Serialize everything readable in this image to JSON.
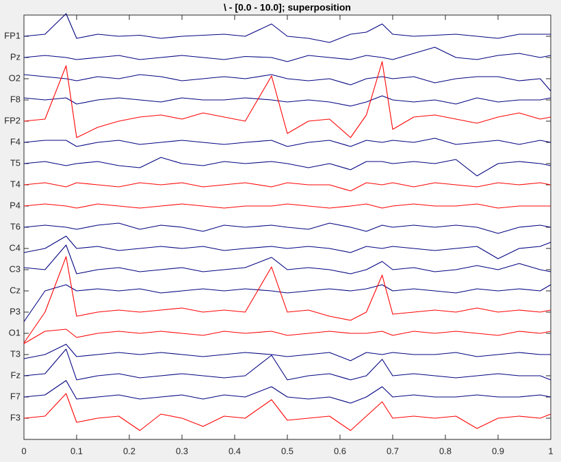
{
  "chart_data": {
    "type": "line",
    "title": "\\ - [0.0 - 10.0]; superposition",
    "x": [
      0,
      0.04,
      0.08,
      0.1,
      0.14,
      0.18,
      0.22,
      0.26,
      0.3,
      0.34,
      0.38,
      0.42,
      0.47,
      0.5,
      0.54,
      0.58,
      0.62,
      0.65,
      0.68,
      0.7,
      0.74,
      0.78,
      0.82,
      0.86,
      0.9,
      0.94,
      0.98,
      1
    ],
    "xlim": [
      0,
      1
    ],
    "xticks": [
      0,
      0.1,
      0.2,
      0.3,
      0.4,
      0.5,
      0.6,
      0.7,
      0.8,
      0.9,
      1
    ],
    "series": [
      {
        "name": "FP1",
        "color": "#000080",
        "values": [
          0,
          0.1,
          1.1,
          -0.1,
          0.1,
          0,
          0.05,
          -0.1,
          0,
          0.05,
          0.1,
          0,
          0.6,
          0,
          -0.1,
          -0.3,
          0.1,
          0.2,
          0.6,
          0.1,
          0,
          0.05,
          0.1,
          0,
          -0.1,
          0.1,
          0.1,
          0.1
        ]
      },
      {
        "name": "Pz",
        "color": "#000080",
        "values": [
          0,
          0.1,
          0,
          -0.1,
          0,
          0.1,
          -0.1,
          0,
          0.1,
          0,
          -0.1,
          0.05,
          0,
          -0.2,
          0.1,
          0,
          -0.1,
          0.1,
          0,
          -0.1,
          0.2,
          0.5,
          0,
          -0.1,
          0.1,
          0.2,
          0,
          0.1
        ]
      },
      {
        "name": "O2",
        "color": "#000080",
        "values": [
          0.2,
          0.1,
          0,
          -0.1,
          0.1,
          0,
          0.2,
          0.1,
          -0.1,
          0,
          0.1,
          0,
          0.2,
          0,
          -0.1,
          0,
          -0.3,
          0,
          0.1,
          0,
          0.1,
          -0.2,
          0,
          0.1,
          0.1,
          -0.1,
          0,
          -0.6
        ]
      },
      {
        "name": "F8",
        "color": "#000080",
        "values": [
          0.1,
          0,
          0.1,
          -0.2,
          0,
          0.1,
          0,
          -0.1,
          0.1,
          0,
          0,
          0.1,
          0,
          -0.1,
          0,
          -0.1,
          -0.3,
          -0.1,
          0.2,
          0,
          -0.1,
          0,
          -0.2,
          0.1,
          -0.1,
          0,
          0,
          0.1
        ]
      },
      {
        "name": "FP2",
        "color": "#ff0000",
        "values": [
          0,
          0.1,
          2.7,
          -0.8,
          -0.3,
          0,
          0.2,
          0.3,
          0.1,
          0.4,
          0.2,
          0,
          2.2,
          -0.6,
          0,
          0.1,
          -0.8,
          0.3,
          2.9,
          -0.4,
          0.2,
          0.3,
          0.1,
          -0.1,
          0.2,
          0.4,
          0.1,
          0.2
        ]
      },
      {
        "name": "F4",
        "color": "#000080",
        "values": [
          0,
          0.1,
          0.1,
          -0.2,
          0,
          0.1,
          -0.1,
          0,
          0.1,
          0,
          -0.1,
          0,
          0.1,
          -0.2,
          0,
          0.1,
          -0.2,
          0.1,
          0,
          0.1,
          0,
          0.2,
          -0.1,
          0,
          0.1,
          -0.1,
          0.1,
          0
        ]
      },
      {
        "name": "T5",
        "color": "#000080",
        "values": [
          0,
          0.1,
          -0.1,
          0,
          0.1,
          -0.1,
          -0.2,
          0.3,
          0,
          -0.1,
          0.1,
          0,
          0.1,
          0,
          -0.2,
          0,
          -0.3,
          0.1,
          0.1,
          0,
          0.1,
          0,
          0.2,
          -0.6,
          0,
          0.1,
          0,
          -0.1
        ]
      },
      {
        "name": "T4",
        "color": "#ff0000",
        "values": [
          0,
          0.1,
          -0.1,
          0.1,
          0,
          -0.1,
          0.1,
          0,
          0.1,
          -0.1,
          0,
          0.1,
          -0.1,
          0.1,
          0,
          0,
          -0.3,
          0.1,
          0,
          0.1,
          -0.1,
          0.1,
          0,
          -0.1,
          0.1,
          0,
          0.1,
          0
        ]
      },
      {
        "name": "P4",
        "color": "#ff0000",
        "values": [
          0,
          0.1,
          0,
          -0.1,
          0.1,
          0,
          -0.1,
          0,
          0.1,
          0,
          -0.1,
          0,
          0,
          0.1,
          0,
          -0.1,
          0,
          0.1,
          -0.1,
          0,
          0.1,
          0,
          0,
          0.1,
          -0.1,
          0,
          0,
          0
        ]
      },
      {
        "name": "T6",
        "color": "#000080",
        "values": [
          0,
          0.1,
          0,
          -0.1,
          0.1,
          0.2,
          -0.1,
          0.1,
          0,
          -0.2,
          0.1,
          0,
          0.1,
          0,
          -0.1,
          0.2,
          0,
          -0.2,
          0.1,
          0,
          0.1,
          0,
          0.1,
          0,
          -0.3,
          0,
          0.1,
          0
        ]
      },
      {
        "name": "C4",
        "color": "#000080",
        "values": [
          -0.2,
          0,
          0.6,
          0,
          0.1,
          -0.1,
          0,
          0.1,
          0,
          0.1,
          -0.1,
          0,
          0.1,
          0,
          0.1,
          0,
          -0.2,
          0.1,
          0,
          0.1,
          0,
          -0.1,
          0,
          0.1,
          -0.5,
          0,
          0.1,
          0.3
        ]
      },
      {
        "name": "C3",
        "color": "#000080",
        "values": [
          0.1,
          0,
          1.2,
          -0.2,
          0,
          0.1,
          -0.1,
          0,
          0.1,
          -0.1,
          0,
          0.1,
          0.6,
          0,
          0.1,
          0,
          -0.2,
          0,
          0.4,
          0,
          0.1,
          -0.1,
          0,
          0.2,
          0,
          0.3,
          0,
          -0.1
        ]
      },
      {
        "name": "Cz",
        "color": "#000080",
        "values": [
          -1.5,
          0,
          0.3,
          0,
          0.1,
          0,
          0.1,
          -0.1,
          0,
          0.1,
          0,
          0.1,
          0,
          -0.1,
          0,
          0.1,
          0,
          0.1,
          0.3,
          0,
          0.1,
          0,
          -0.1,
          0.1,
          0,
          0.1,
          0,
          0.3
        ]
      },
      {
        "name": "P3",
        "color": "#ff0000",
        "values": [
          -1.5,
          0,
          2.7,
          -0.2,
          0,
          0.1,
          0,
          0.1,
          0.2,
          0,
          0.1,
          0,
          2.2,
          0,
          0.1,
          -0.2,
          -0.4,
          0,
          1.8,
          -0.1,
          0,
          0.1,
          0,
          0.2,
          0,
          0.1,
          0,
          0.1
        ]
      },
      {
        "name": "O1",
        "color": "#ff0000",
        "values": [
          -0.5,
          0.1,
          0.2,
          -0.2,
          0,
          0.1,
          0,
          0.1,
          0,
          -0.1,
          0.1,
          0,
          0.1,
          -0.1,
          0,
          0.1,
          0,
          0,
          0.1,
          -0.1,
          0.1,
          0,
          0.1,
          0,
          -0.1,
          0.1,
          0,
          0.1
        ]
      },
      {
        "name": "T3",
        "color": "#000080",
        "values": [
          -0.2,
          0,
          0.5,
          -0.1,
          0,
          0.1,
          0,
          0.1,
          0,
          -0.1,
          0,
          0.1,
          0,
          -0.1,
          0,
          0.1,
          -0.3,
          0.1,
          0,
          0.1,
          0,
          0,
          0.1,
          -0.1,
          0,
          0.1,
          0,
          0
        ]
      },
      {
        "name": "Fz",
        "color": "#000080",
        "values": [
          0,
          0.1,
          1.3,
          -0.2,
          0,
          0.1,
          -0.1,
          0,
          0.1,
          0,
          -0.1,
          0,
          1.0,
          -0.2,
          0,
          0.1,
          -0.2,
          0,
          0.8,
          0,
          0.1,
          0,
          -0.1,
          0,
          0.1,
          0,
          0,
          -0.2
        ]
      },
      {
        "name": "F7",
        "color": "#000080",
        "values": [
          0,
          0.1,
          0.8,
          -0.1,
          0,
          0.1,
          -0.1,
          0,
          0.1,
          -0.1,
          0.1,
          0,
          0.5,
          0,
          -0.1,
          0,
          -0.3,
          0,
          0.5,
          0,
          0.1,
          0,
          0,
          0.1,
          0,
          0,
          0.1,
          0
        ]
      },
      {
        "name": "F3",
        "color": "#ff0000",
        "values": [
          0,
          0.1,
          1.2,
          -0.2,
          0,
          0.1,
          -0.6,
          0.2,
          0,
          -0.4,
          0.1,
          0,
          0.9,
          -0.1,
          0,
          0.1,
          -0.6,
          0.1,
          0.8,
          0,
          0.1,
          0,
          0.1,
          -0.5,
          0,
          0.1,
          0,
          0.2
        ]
      }
    ]
  }
}
